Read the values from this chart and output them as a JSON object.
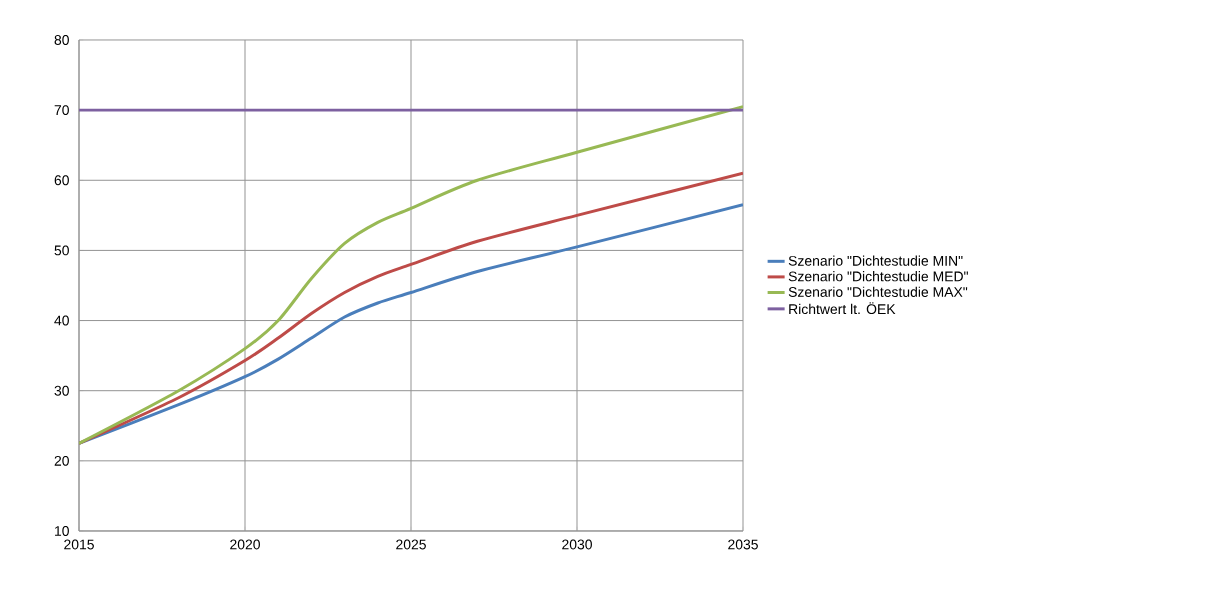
{
  "chart_data": {
    "type": "line",
    "x": [
      2015,
      2018,
      2020,
      2021,
      2022,
      2023,
      2024,
      2025,
      2027,
      2030,
      2035
    ],
    "series": [
      {
        "name": "Szenario \"Dichtestudie MIN\"",
        "color": "#4a7ebb",
        "values": [
          22.5,
          28,
          32,
          34.5,
          37.5,
          40.5,
          42.5,
          44,
          47,
          50.5,
          56.5
        ]
      },
      {
        "name": "Szenario \"Dichtestudie MED\"",
        "color": "#be4b48",
        "values": [
          22.5,
          29,
          34.3,
          37.5,
          41,
          44,
          46.3,
          48,
          51.3,
          55,
          61
        ]
      },
      {
        "name": "Szenario \"Dichtestudie MAX\"",
        "color": "#98b954",
        "values": [
          22.5,
          30,
          36,
          40,
          46,
          51,
          54,
          56,
          60,
          64,
          70.5
        ]
      },
      {
        "name": "Richtwert lt. ÖEK",
        "color": "#7d60a0",
        "values": [
          70,
          70,
          70,
          70,
          70,
          70,
          70,
          70,
          70,
          70,
          70
        ]
      }
    ],
    "xlim": [
      2015,
      2035
    ],
    "xticks": [
      2015,
      2020,
      2025,
      2030,
      2035
    ],
    "ylim": [
      10,
      80
    ],
    "yticks": [
      10,
      20,
      30,
      40,
      50,
      60,
      70,
      80
    ],
    "grid": true,
    "legend": "right",
    "marker": "none",
    "line_style": "solid"
  }
}
